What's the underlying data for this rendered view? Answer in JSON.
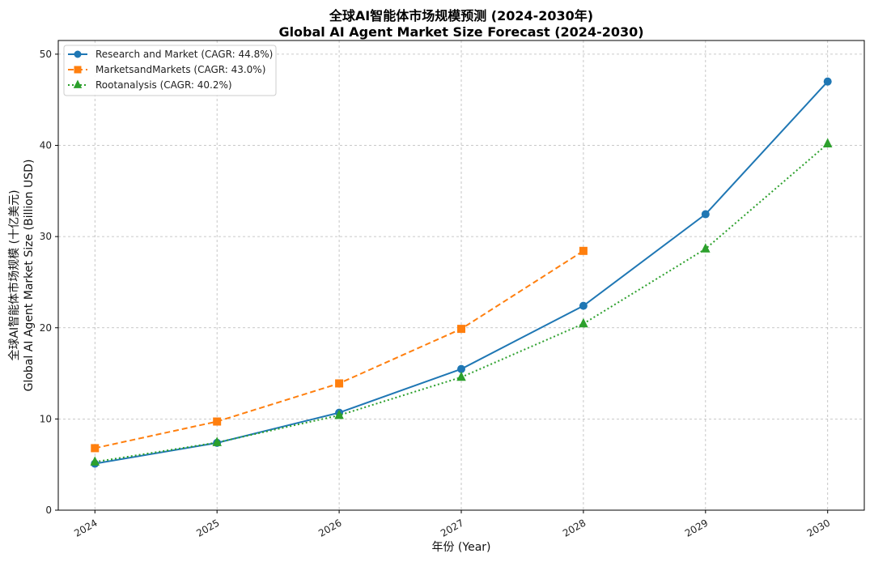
{
  "chart_data": {
    "type": "line",
    "title": "全球AI智能体市场规模预测 (2024-2030年)",
    "subtitle": "Global AI Agent Market Size Forecast (2024-2030)",
    "xlabel": "年份 (Year)",
    "ylabel_line1": "全球AI智能体市场规模 (十亿美元)",
    "ylabel_line2": "Global AI Agent Market Size (Billion USD)",
    "x": [
      2024,
      2025,
      2026,
      2027,
      2028,
      2029,
      2030
    ],
    "x_tick_labels": [
      "2024",
      "2025",
      "2026",
      "2027",
      "2028",
      "2029",
      "2030"
    ],
    "xlim": [
      2023.7,
      2030.3
    ],
    "ylim": [
      0,
      51.5
    ],
    "y_ticks": [
      0,
      10,
      20,
      30,
      40,
      50
    ],
    "y_tick_labels": [
      "0",
      "10",
      "20",
      "30",
      "40",
      "50"
    ],
    "grid": true,
    "legend_position": "top-left",
    "series": [
      {
        "name": "Research and Market (CAGR: 44.8%)",
        "color": "#1f77b4",
        "marker": "circle",
        "line_style": "solid",
        "x": [
          2024,
          2025,
          2026,
          2027,
          2028,
          2029,
          2030
        ],
        "values": [
          5.1,
          7.38,
          10.69,
          15.48,
          22.41,
          32.45,
          47.0
        ]
      },
      {
        "name": "MarketsandMarkets (CAGR: 43.0%)",
        "color": "#ff7f0e",
        "marker": "square",
        "line_style": "dashed",
        "x": [
          2024,
          2025,
          2026,
          2027,
          2028
        ],
        "values": [
          6.8,
          9.72,
          13.9,
          19.88,
          28.43
        ]
      },
      {
        "name": "Rootanalysis (CAGR: 40.2%)",
        "color": "#2ca02c",
        "marker": "triangle",
        "line_style": "dotted",
        "x": [
          2024,
          2025,
          2026,
          2027,
          2028,
          2029,
          2030
        ],
        "values": [
          5.29,
          7.42,
          10.4,
          14.58,
          20.44,
          28.65,
          40.17
        ]
      }
    ]
  }
}
